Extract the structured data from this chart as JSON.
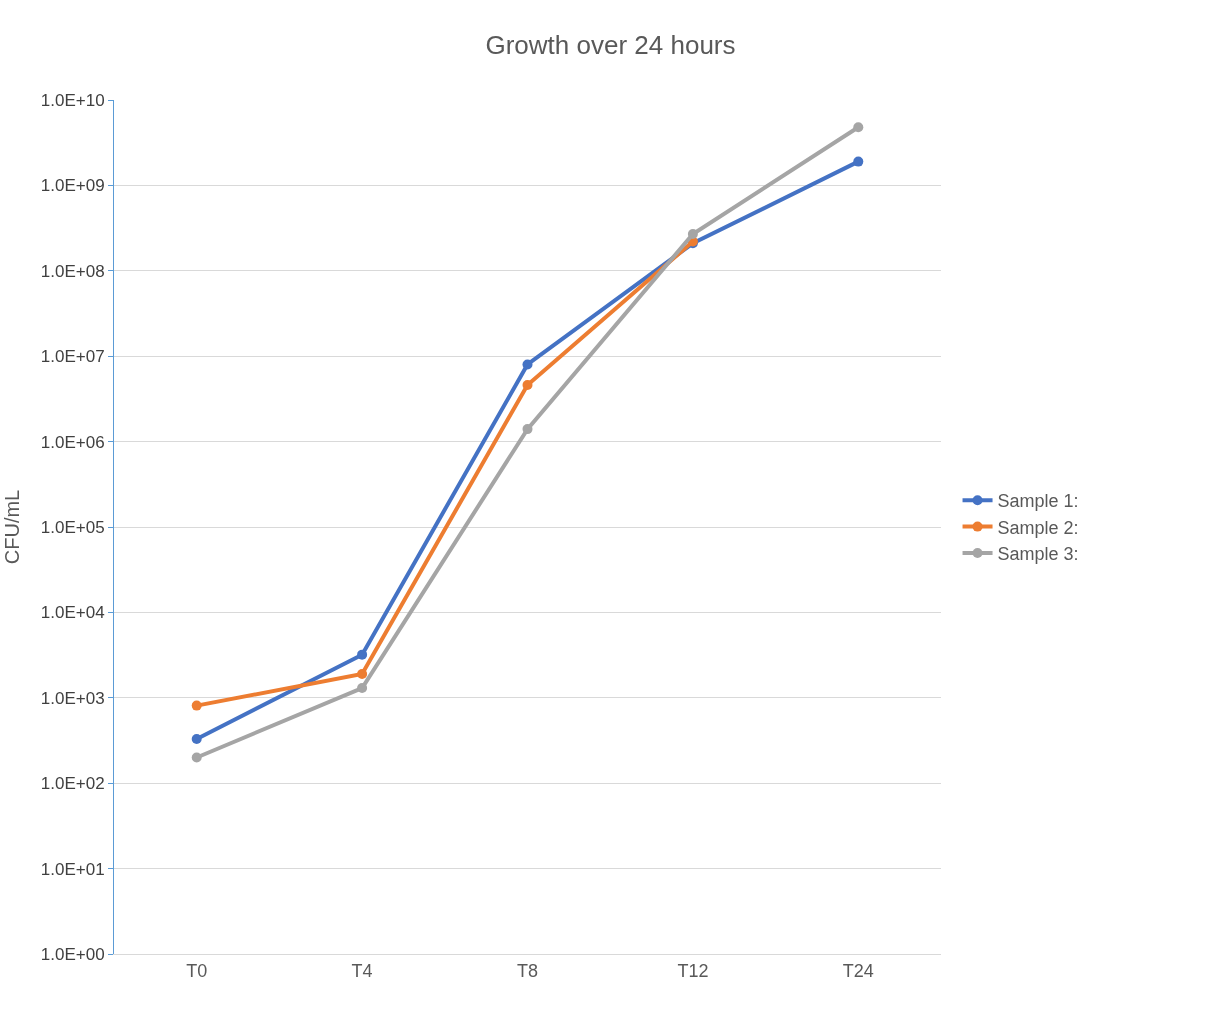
{
  "chart_data": {
    "type": "line",
    "title": "Growth over 24 hours",
    "ylabel": "CFU/mL",
    "categories": [
      "T0",
      "T4",
      "T8",
      "T12",
      "T24"
    ],
    "series": [
      {
        "name": "Sample 1:",
        "color": "#4472c4",
        "values": [
          330,
          3200,
          8000000,
          210000000,
          1900000000
        ]
      },
      {
        "name": "Sample 2:",
        "color": "#ed7d31",
        "values": [
          810,
          1900,
          4600000,
          220000000,
          null
        ]
      },
      {
        "name": "Sample 3:",
        "color": "#a5a5a5",
        "values": [
          200,
          1300,
          1400000,
          270000000,
          4800000000
        ]
      }
    ],
    "log": "y",
    "ylim": [
      1,
      10000000000
    ],
    "yticks": [
      {
        "value": 1,
        "label": "1.0E+00"
      },
      {
        "value": 10,
        "label": "1.0E+01"
      },
      {
        "value": 100,
        "label": "1.0E+02"
      },
      {
        "value": 1000,
        "label": "1.0E+03"
      },
      {
        "value": 10000,
        "label": "1.0E+04"
      },
      {
        "value": 100000,
        "label": "1.0E+05"
      },
      {
        "value": 1000000,
        "label": "1.0E+06"
      },
      {
        "value": 10000000,
        "label": "1.0E+07"
      },
      {
        "value": 100000000,
        "label": "1.0E+08"
      },
      {
        "value": 1000000000,
        "label": "1.0E+09"
      },
      {
        "value": 10000000000,
        "label": "1.0E+10"
      }
    ],
    "grid": "y",
    "legend": "right",
    "marker": "circle",
    "line_style": "solid"
  }
}
